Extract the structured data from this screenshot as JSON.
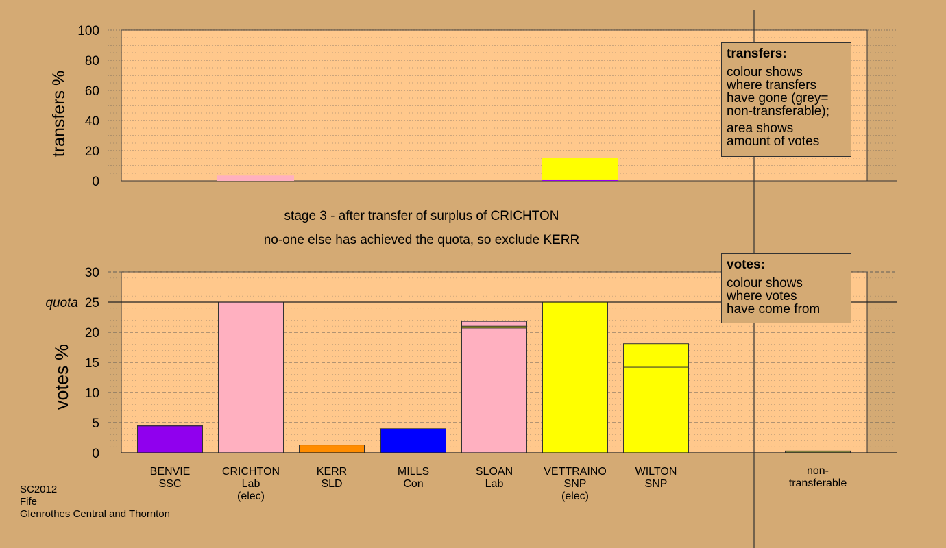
{
  "stage_line1": "stage 3 - after transfer of surplus of CRICHTON",
  "stage_line2": "no-one else has achieved the quota, so exclude KERR",
  "transfers_legend": {
    "title": "transfers:",
    "lines": [
      "colour shows",
      "where transfers",
      "have gone (grey=",
      "non-transferable);"
    ],
    "lines2": [
      "area shows",
      "amount of votes"
    ]
  },
  "votes_legend": {
    "title": "votes:",
    "lines": [
      "colour shows",
      "where votes",
      "have come from"
    ]
  },
  "footer": [
    "SC2012",
    "Fife",
    "Glenrothes Central and Thornton"
  ],
  "candidates": [
    {
      "name": "BENVIE",
      "party": "SSC",
      "note": ""
    },
    {
      "name": "CRICHTON",
      "party": "Lab",
      "note": "(elec)"
    },
    {
      "name": "KERR",
      "party": "SLD",
      "note": ""
    },
    {
      "name": "MILLS",
      "party": "Con",
      "note": ""
    },
    {
      "name": "SLOAN",
      "party": "Lab",
      "note": ""
    },
    {
      "name": "VETTRAINO",
      "party": "SNP",
      "note": "(elec)"
    },
    {
      "name": "WILTON",
      "party": "SNP",
      "note": ""
    },
    {
      "name": "",
      "party": "",
      "note": ""
    },
    {
      "name": "non-",
      "party": "transferable",
      "note": ""
    }
  ],
  "colors": {
    "SSC": "#9000ee",
    "Lab": "#ffb0c0",
    "SLD": "#ff8c00",
    "Con": "#0000ff",
    "SNP": "#ffff00",
    "nontransferable": "#808040",
    "panel": "#ffc88c",
    "background": "#d4aa74"
  },
  "chart_data": [
    {
      "type": "bar",
      "ylabel": "transfers %",
      "ylim": [
        0,
        100
      ],
      "yticks": [
        0,
        20,
        40,
        60,
        80,
        100
      ],
      "bars": [
        {
          "slot": 1,
          "segments": [
            {
              "party": "Lab",
              "value": 3.5
            }
          ]
        },
        {
          "slot": 5,
          "segments": [
            {
              "party": "SSC",
              "value": 0.5
            },
            {
              "party": "SNP",
              "value": 14.5
            }
          ]
        }
      ]
    },
    {
      "type": "bar",
      "ylabel": "votes %",
      "ylim": [
        0,
        30
      ],
      "yticks": [
        0,
        5,
        10,
        15,
        20,
        25,
        30
      ],
      "quota": 25,
      "quota_label": "quota",
      "bars": [
        {
          "slot": 0,
          "segments": [
            {
              "party": "SSC",
              "value": 4.3
            },
            {
              "party": "SSC",
              "value": 0.2
            }
          ]
        },
        {
          "slot": 1,
          "segments": [
            {
              "party": "Lab",
              "value": 25.0
            }
          ]
        },
        {
          "slot": 2,
          "segments": [
            {
              "party": "SLD",
              "value": 1.3
            }
          ]
        },
        {
          "slot": 3,
          "segments": [
            {
              "party": "Con",
              "value": 4.0
            }
          ]
        },
        {
          "slot": 4,
          "segments": [
            {
              "party": "Lab",
              "value": 20.7
            },
            {
              "party": "SNP",
              "value": 0.3
            },
            {
              "party": "Lab",
              "value": 0.8
            }
          ]
        },
        {
          "slot": 5,
          "segments": [
            {
              "party": "SNP",
              "value": 25.0
            }
          ]
        },
        {
          "slot": 6,
          "segments": [
            {
              "party": "SNP",
              "value": 14.2
            },
            {
              "party": "SNP",
              "value": 3.9
            }
          ]
        },
        {
          "slot": 8,
          "segments": [
            {
              "party": "nontransferable",
              "value": 0.3
            }
          ]
        }
      ]
    }
  ]
}
